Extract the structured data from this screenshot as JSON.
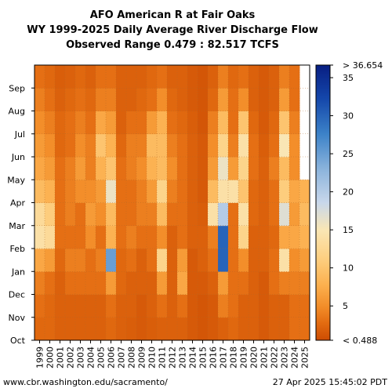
{
  "chart_data": {
    "type": "heatmap",
    "title_lines": [
      "AFO American R at Fair Oaks",
      "WY 1999-2025 Daily Average River Discharge Flow",
      "Observed Range 0.479 : 82.517 TCFS"
    ],
    "x_categories": [
      "1999",
      "2000",
      "2001",
      "2002",
      "2003",
      "2004",
      "2005",
      "2006",
      "2007",
      "2008",
      "2009",
      "2010",
      "2011",
      "2012",
      "2013",
      "2014",
      "2015",
      "2016",
      "2017",
      "2018",
      "2019",
      "2020",
      "2021",
      "2022",
      "2023",
      "2024",
      "2025"
    ],
    "y_categories": [
      "Oct",
      "Nov",
      "Dec",
      "Jan",
      "Feb",
      "Mar",
      "Apr",
      "May",
      "Jun",
      "Jul",
      "Aug",
      "Sep"
    ],
    "colorbar": {
      "min": 0.488,
      "max": 36.654,
      "label_min": "< 0.488",
      "label_max": "> 36.654",
      "ticks": [
        5,
        10,
        15,
        20,
        25,
        30,
        35
      ]
    },
    "monthly_flow_estimates": {
      "1999": [
        2.5,
        3,
        4,
        7,
        14,
        13,
        9,
        7,
        6,
        5,
        4,
        3
      ],
      "2000": [
        2.5,
        2.5,
        3,
        6,
        13,
        11,
        8,
        6,
        5,
        4,
        3,
        2.5
      ],
      "2001": [
        2,
        2,
        2,
        2.5,
        3,
        3,
        3,
        3,
        2.5,
        2.5,
        2,
        1.8
      ],
      "2002": [
        2,
        2,
        3,
        4,
        3,
        4,
        4,
        4,
        3,
        3,
        2.5,
        2
      ],
      "2003": [
        2,
        2,
        3,
        4,
        3,
        3,
        5,
        6,
        5,
        4,
        3,
        2.5
      ],
      "2004": [
        2,
        2,
        3,
        3,
        5,
        6,
        5,
        4,
        4,
        3,
        2.5,
        2
      ],
      "2005": [
        2,
        2,
        3,
        4,
        3,
        5,
        6,
        8,
        10,
        7,
        4,
        3
      ],
      "2006": [
        2.5,
        3,
        6,
        25,
        8,
        9,
        16,
        10,
        8,
        6,
        4,
        3
      ],
      "2007": [
        2,
        2,
        2.5,
        2.5,
        3,
        3,
        3,
        3,
        2.5,
        2,
        2,
        2
      ],
      "2008": [
        1.8,
        2,
        2,
        3,
        4,
        3,
        3,
        4,
        4,
        3,
        2,
        2
      ],
      "2009": [
        1.5,
        1.5,
        2,
        2,
        3,
        4,
        4,
        5,
        4,
        3,
        2.5,
        2
      ],
      "2010": [
        1.8,
        2,
        2,
        3,
        3,
        4,
        6,
        8,
        9,
        6,
        3,
        2.5
      ],
      "2011": [
        2,
        3,
        6,
        12,
        5,
        9,
        12,
        9,
        9,
        8,
        5,
        3
      ],
      "2012": [
        2,
        2,
        2,
        2,
        2,
        3,
        4,
        5,
        4,
        3,
        2.5,
        2
      ],
      "2013": [
        2,
        3,
        7,
        6,
        3,
        3,
        3,
        3,
        3,
        2.5,
        2,
        2
      ],
      "2014": [
        1.5,
        1.5,
        1.5,
        1.5,
        2,
        2,
        2,
        2,
        2,
        1.8,
        1.5,
        1.5
      ],
      "2015": [
        1.2,
        1.2,
        1.5,
        2,
        2,
        1.8,
        1.5,
        1.5,
        1.5,
        1.2,
        1.2,
        1.2
      ],
      "2016": [
        1.5,
        1.5,
        2,
        3,
        4,
        14,
        9,
        6,
        5,
        4,
        2.5,
        2
      ],
      "2017": [
        2,
        4,
        6,
        30,
        30,
        20,
        14,
        16,
        12,
        9,
        6,
        4
      ],
      "2018": [
        2.5,
        3,
        3,
        3,
        3,
        3,
        14,
        6,
        4,
        3,
        3,
        2.5
      ],
      "2019": [
        2,
        2,
        3,
        5,
        12,
        14,
        10,
        12,
        14,
        10,
        5,
        3
      ],
      "2020": [
        2,
        2,
        2,
        2,
        2,
        2.5,
        2.5,
        3,
        3,
        2.5,
        2,
        2
      ],
      "2021": [
        1.5,
        1.5,
        1.5,
        2,
        2,
        2,
        2,
        2,
        1.8,
        1.5,
        1.5,
        1.5
      ],
      "2022": [
        2,
        2,
        3,
        3,
        2.5,
        3,
        3,
        4,
        3,
        2.5,
        2,
        2
      ],
      "2023": [
        2,
        2,
        4,
        14,
        7,
        17,
        11,
        9,
        15,
        10,
        6,
        4
      ],
      "2024": [
        3,
        3,
        4,
        5,
        7,
        6,
        7,
        5,
        5,
        4,
        3,
        3
      ],
      "2025": [
        3,
        3,
        4,
        6,
        8,
        9,
        8
      ]
    }
  },
  "footer": {
    "left": "www.cbr.washington.edu/sacramento/",
    "right": "27 Apr 2025 15:45:02 PDT"
  }
}
